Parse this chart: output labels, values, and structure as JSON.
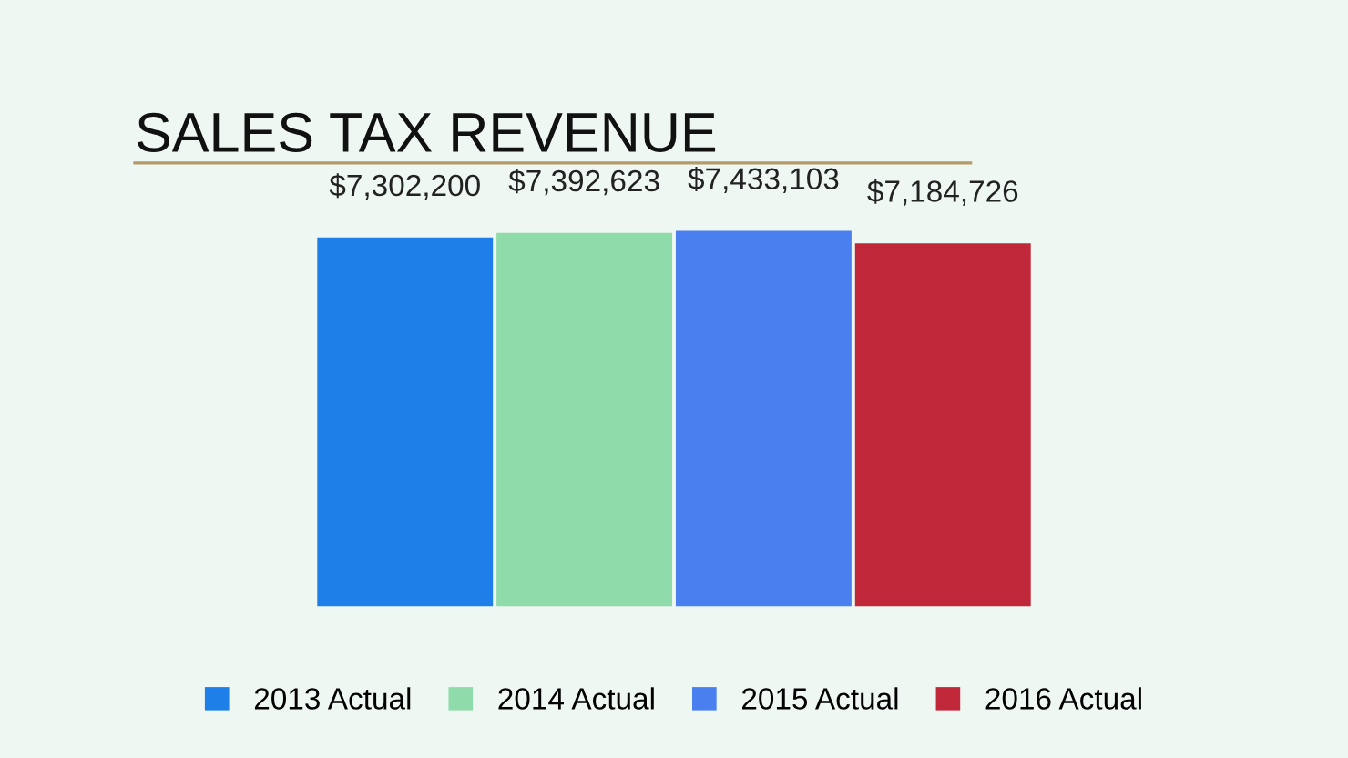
{
  "chart_data": {
    "type": "bar",
    "title": "SALES TAX REVENUE",
    "categories": [
      null
    ],
    "series": [
      {
        "name": "2013 Actual",
        "color": "#1f7fe8",
        "values": [
          7302200
        ],
        "value_labels": [
          "$7,302,200"
        ]
      },
      {
        "name": "2014 Actual",
        "color": "#8fdcaa",
        "values": [
          7392623
        ],
        "value_labels": [
          "$7,392,623"
        ]
      },
      {
        "name": "2015 Actual",
        "color": "#4a7ff0",
        "values": [
          7433103
        ],
        "value_labels": [
          "$7,433,103"
        ]
      },
      {
        "name": "2016 Actual",
        "color": "#c0283a",
        "values": [
          7184726
        ],
        "value_labels": [
          "$7,184,726"
        ]
      }
    ],
    "legend": "bottom"
  }
}
